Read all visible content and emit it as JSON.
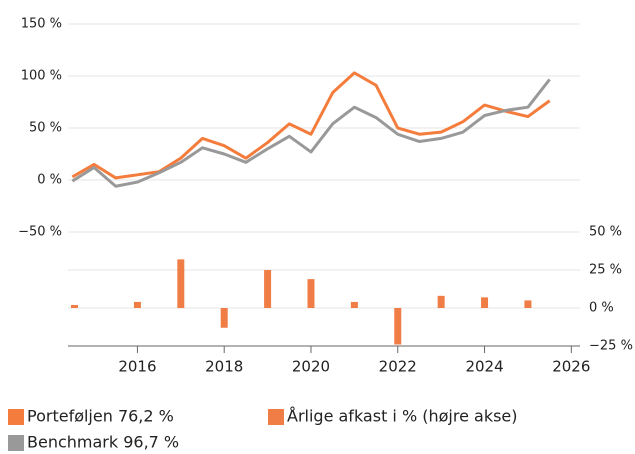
{
  "chart_data": {
    "type": "line",
    "x": [
      2014.5,
      2015,
      2015.5,
      2016,
      2016.5,
      2017,
      2017.5,
      2018,
      2018.5,
      2019,
      2019.5,
      2020,
      2020.5,
      2021,
      2021.5,
      2022,
      2022.5,
      2023,
      2023.5,
      2024,
      2024.5,
      2025,
      2025.5
    ],
    "series": [
      {
        "name": "Porteføljen 76,2 %",
        "color": "#f47c3c",
        "values": [
          3,
          15,
          2,
          5,
          8,
          21,
          40,
          33,
          21,
          36,
          54,
          44,
          84,
          103,
          91,
          50,
          44,
          46,
          56,
          72,
          66,
          61,
          76.2
        ]
      },
      {
        "name": "Benchmark 96,7 %",
        "color": "#999999",
        "values": [
          -1,
          12,
          -6,
          -2,
          7,
          17,
          31,
          25,
          17,
          30,
          42,
          27,
          54,
          70,
          60,
          44,
          37,
          40,
          46,
          62,
          67,
          70,
          96.7
        ]
      },
      {
        "name": "Årlige afkast i % (højre akse)",
        "color": "#f07d45",
        "type": "bar",
        "axis": "y2",
        "x": [
          2014.55,
          2016,
          2017,
          2018,
          2019,
          2020,
          2021,
          2022,
          2023,
          2024,
          2025
        ],
        "values": [
          2,
          4,
          32,
          -13,
          25,
          19,
          4,
          -24,
          8,
          7,
          5
        ]
      }
    ],
    "xlim": [
      2014.4,
      2026.2
    ],
    "xticks": [
      2016,
      2018,
      2020,
      2022,
      2024,
      2026
    ],
    "ylim": [
      -50,
      150
    ],
    "yticks": [
      {
        "value": 150,
        "label": "150 %"
      },
      {
        "value": 100,
        "label": "100 %"
      },
      {
        "value": 50,
        "label": "50 %"
      },
      {
        "value": 0,
        "label": "0 %"
      },
      {
        "value": -50,
        "label": "−50 %"
      }
    ],
    "y2lim": [
      -25,
      50
    ],
    "y2ticks": [
      {
        "value": 50,
        "label": "50 %"
      },
      {
        "value": 25,
        "label": "25 %"
      },
      {
        "value": 0,
        "label": "0 %"
      },
      {
        "value": -25,
        "label": "−25 %"
      }
    ],
    "grid": true
  }
}
